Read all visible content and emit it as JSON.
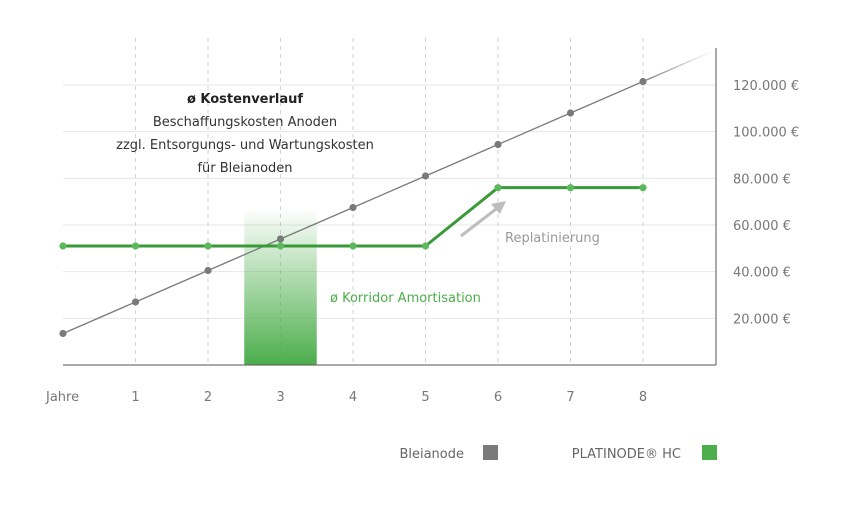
{
  "chart_data": {
    "type": "line",
    "title": "ø Kostenverlauf",
    "subtitle_lines": [
      "Beschaffungskosten Anoden",
      "zzgl. Entsorgungs- und Wartungskosten",
      "für Bleianoden"
    ],
    "x_axis_label": "Jahre",
    "x": [
      0,
      1,
      2,
      3,
      4,
      5,
      6,
      7,
      8
    ],
    "x_tick_labels": [
      "1",
      "2",
      "3",
      "4",
      "5",
      "6",
      "7",
      "8"
    ],
    "y_tick_labels": [
      "20.000 €",
      "40.000 €",
      "60.000 €",
      "80.000 €",
      "100.000 €",
      "120.000 €"
    ],
    "y_ticks": [
      20000,
      40000,
      60000,
      80000,
      100000,
      120000
    ],
    "xlim": [
      0,
      9
    ],
    "ylim": [
      0,
      135000
    ],
    "grid": "vertical dashed and horizontal",
    "legend_placement": "bottom-right",
    "series": [
      {
        "name": "Bleianode",
        "color": "#7a7a7a",
        "values": [
          13500,
          27000,
          40500,
          54000,
          67500,
          81000,
          94500,
          108000,
          121500
        ],
        "extends_beyond_last_point": true
      },
      {
        "name": "PLATINODE® HC",
        "color": "#3a9a3a",
        "values": [
          51000,
          51000,
          51000,
          51000,
          51000,
          51000,
          76000,
          76000,
          76000
        ],
        "extends_beyond_last_point": true
      }
    ],
    "annotations": {
      "corridor_label": "ø Korridor Amortisation",
      "corridor_range": [
        2.5,
        3.5
      ],
      "corridor_color": "#4cae4c",
      "replatinierung_label": "Replatinierung"
    }
  }
}
